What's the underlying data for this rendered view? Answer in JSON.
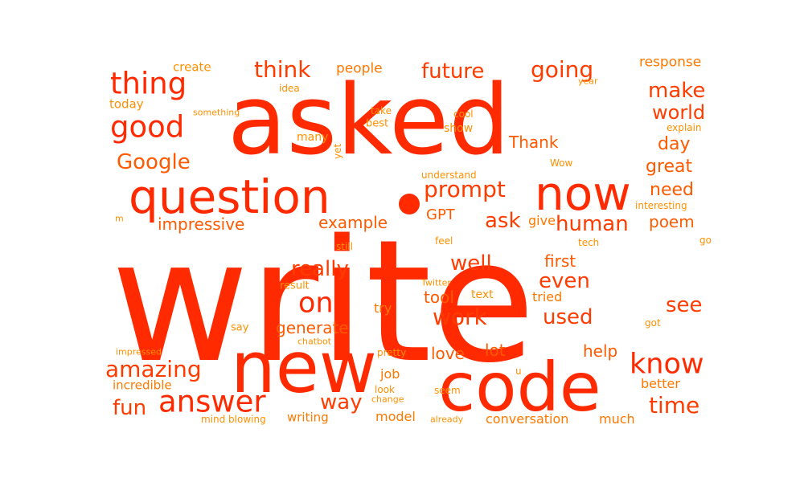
{
  "words": {
    "write": "write",
    "asked": "asked",
    "code": "code",
    "new": "new",
    "question": "question",
    "now": "now",
    "answer": "answer",
    "thing": "thing",
    "good": "good",
    "know": "know",
    "amazing": "amazing",
    "one": "one",
    "think": "think",
    "future": "future",
    "going": "going",
    "prompt": "prompt",
    "make": "make",
    "world": "world",
    "time": "time",
    "Google": "Google",
    "fun": "fun",
    "work": "work",
    "well": "well",
    "really": "really",
    "ask": "ask",
    "human": "human",
    "even": "even",
    "way": "way",
    "used": "used",
    "see": "see",
    "need": "need",
    "great": "great",
    "day": "day",
    "Thank": "Thank",
    "impressive": "impressive",
    "generate": "generate",
    "first": "first",
    "tool": "tool",
    "poem": "poem",
    "help": "help",
    "love": "love",
    "lot": "lot",
    "example": "example",
    "GPT": "GPT",
    "people": "people",
    "response": "response",
    "create": "create",
    "today": "today",
    "model": "model",
    "job": "job",
    "better": "better",
    "much": "much",
    "conversation": "conversation",
    "incredible": "incredible",
    "writing": "writing",
    "tried": "tried",
    "give": "give",
    "try": "try",
    "many": "many",
    "best": "best",
    "show": "show",
    "text": "text",
    "result": "result",
    "say": "say",
    "idea": "idea",
    "something": "something",
    "take": "take",
    "cool": "cool",
    "yet": "yet",
    "year": "year",
    "explain": "explain",
    "Wow": "Wow",
    "understand": "understand",
    "interesting": "interesting",
    "m": "m",
    "still": "still",
    "feel": "feel",
    "tech": "tech",
    "go": "go",
    "Twitter": "Twitter",
    "chatbot": "chatbot",
    "got": "got",
    "impressed": "impressed",
    "pretty": "pretty",
    "u": "u",
    "look": "look",
    "change": "change",
    "seem": "seem",
    "mind_blowing": "mind blowing",
    "already": "already"
  },
  "colors": {
    "c1": "#ff2a00",
    "c2": "#ff3c00",
    "c3": "#ff5a00",
    "c4": "#ff7800",
    "c5": "#ff9000"
  }
}
